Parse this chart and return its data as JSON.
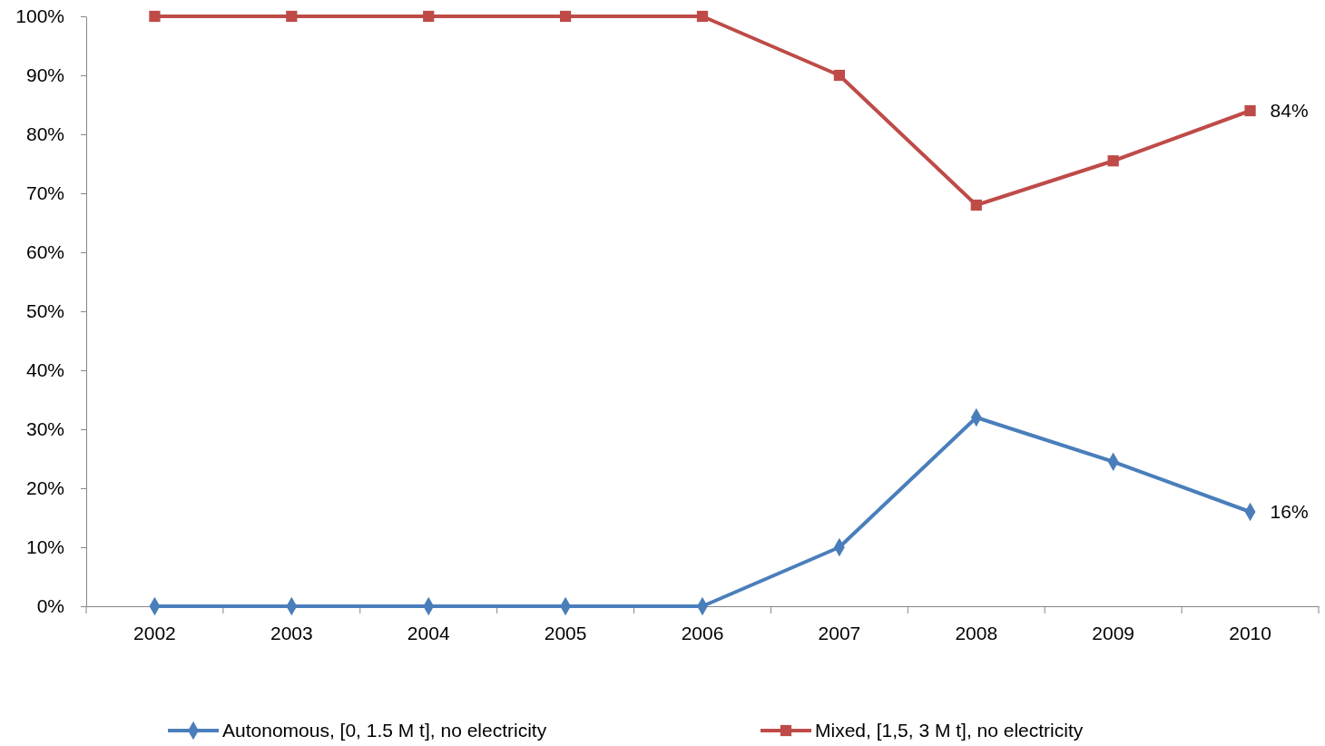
{
  "chart_data": {
    "type": "line",
    "categories": [
      "2002",
      "2003",
      "2004",
      "2005",
      "2006",
      "2007",
      "2008",
      "2009",
      "2010"
    ],
    "series": [
      {
        "name": "Autonomous, [0, 1.5 M t], no electricity",
        "color": "#4a7ebb",
        "marker": "diamond",
        "values": [
          0,
          0,
          0,
          0,
          0,
          10,
          32,
          24.5,
          16
        ],
        "value_labels": [
          null,
          null,
          null,
          null,
          null,
          null,
          null,
          null,
          "16%"
        ]
      },
      {
        "name": "Mixed, [1,5, 3 M t], no electricity",
        "color": "#be4b48",
        "marker": "square",
        "values": [
          100,
          100,
          100,
          100,
          100,
          90,
          68,
          75.5,
          84
        ],
        "value_labels": [
          null,
          null,
          null,
          null,
          null,
          null,
          null,
          null,
          "84%"
        ]
      }
    ],
    "ylim": [
      0,
      100
    ],
    "yticks": [
      {
        "value": 0,
        "label": "0%"
      },
      {
        "value": 10,
        "label": "10%"
      },
      {
        "value": 20,
        "label": "20%"
      },
      {
        "value": 30,
        "label": "30%"
      },
      {
        "value": 40,
        "label": "40%"
      },
      {
        "value": 50,
        "label": "50%"
      },
      {
        "value": 60,
        "label": "60%"
      },
      {
        "value": 70,
        "label": "70%"
      },
      {
        "value": 80,
        "label": "80%"
      },
      {
        "value": 90,
        "label": "90%"
      },
      {
        "value": 100,
        "label": "100%"
      }
    ],
    "grid": false,
    "legend": "bottom"
  }
}
